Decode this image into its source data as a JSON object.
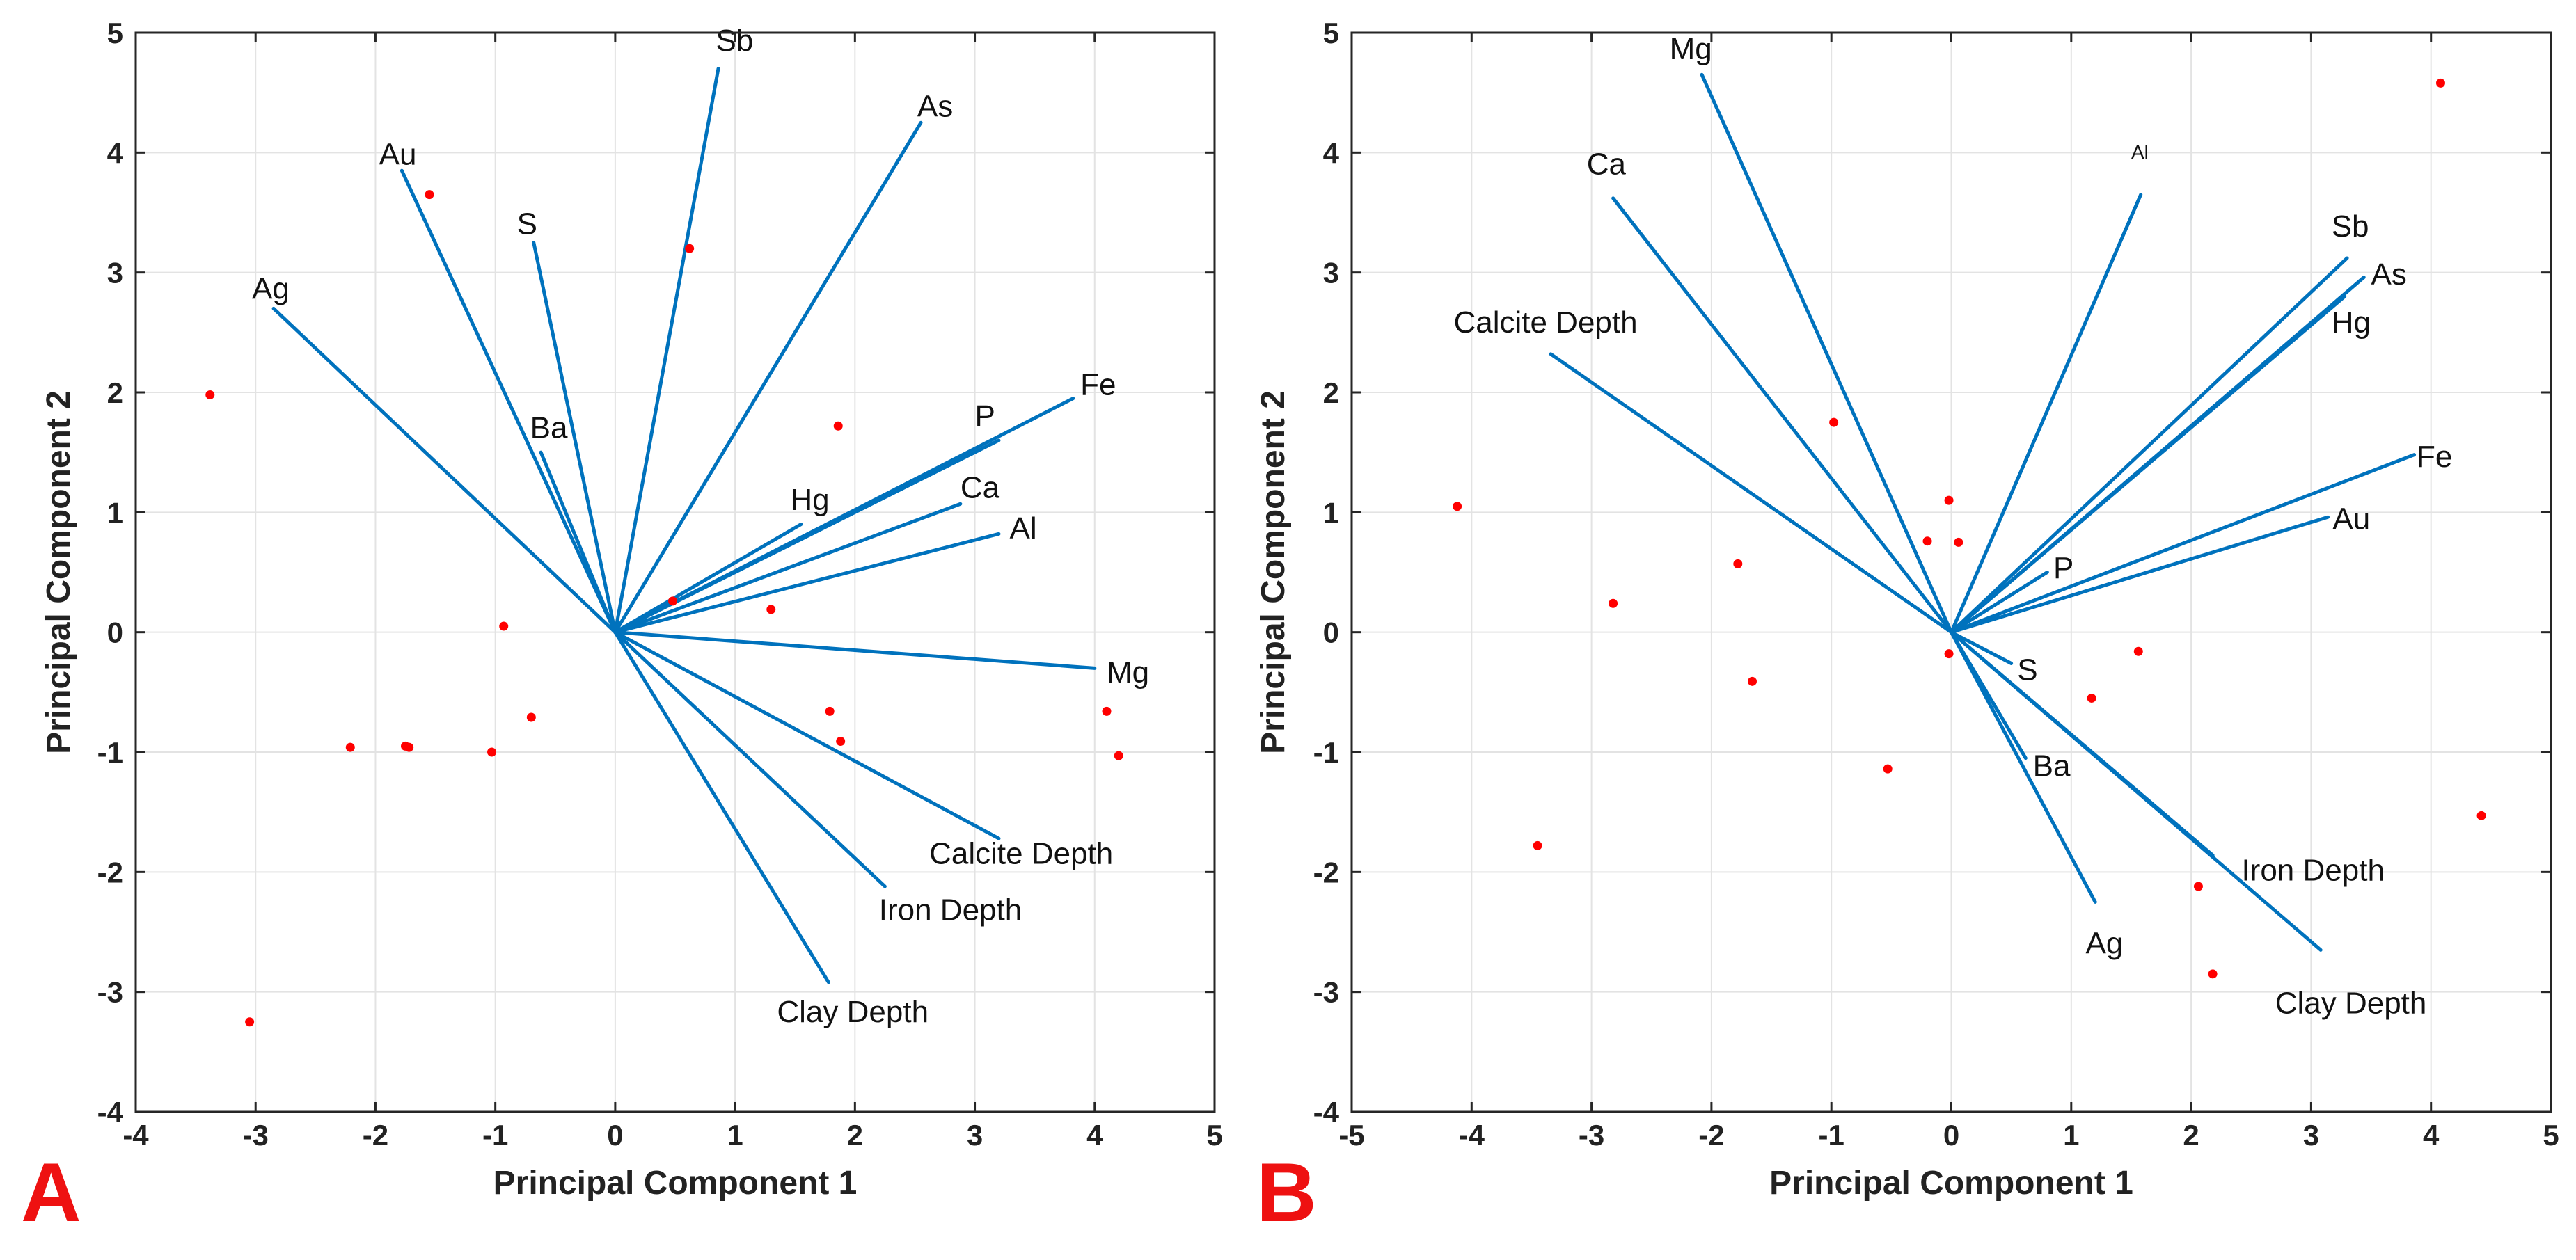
{
  "colors": {
    "vector": "#0072BD",
    "point": "#ff0000",
    "panel_letter": "#ee1111"
  },
  "chart_data": [
    {
      "type": "scatter",
      "panel_label": "A",
      "xlabel": "Principal Component 1",
      "ylabel": "Principal Component 2",
      "xlim": [
        -4,
        5
      ],
      "ylim": [
        -4,
        5
      ],
      "xticks": [
        -4,
        -3,
        -2,
        -1,
        0,
        1,
        2,
        3,
        4,
        5
      ],
      "yticks": [
        -4,
        -3,
        -2,
        -1,
        0,
        1,
        2,
        3,
        4,
        5
      ],
      "grid": true,
      "loadings": [
        {
          "name": "Sb",
          "x": 0.86,
          "y": 4.7,
          "lx": 0.84,
          "ly": 4.85
        },
        {
          "name": "As",
          "x": 2.55,
          "y": 4.25,
          "lx": 2.52,
          "ly": 4.3
        },
        {
          "name": "Au",
          "x": -1.78,
          "y": 3.85,
          "lx": -1.97,
          "ly": 3.9
        },
        {
          "name": "S",
          "x": -0.68,
          "y": 3.25,
          "lx": -0.82,
          "ly": 3.32
        },
        {
          "name": "Ag",
          "x": -2.85,
          "y": 2.7,
          "lx": -3.03,
          "ly": 2.78
        },
        {
          "name": "Ba",
          "x": -0.62,
          "y": 1.5,
          "lx": -0.71,
          "ly": 1.62
        },
        {
          "name": "Fe",
          "x": 3.82,
          "y": 1.95,
          "lx": 3.88,
          "ly": 1.98
        },
        {
          "name": "P",
          "x": 3.2,
          "y": 1.6,
          "lx": 3.0,
          "ly": 1.72
        },
        {
          "name": "Hg",
          "x": 1.55,
          "y": 0.9,
          "lx": 1.46,
          "ly": 1.02
        },
        {
          "name": "Ca",
          "x": 2.88,
          "y": 1.07,
          "lx": 2.88,
          "ly": 1.12
        },
        {
          "name": "Al",
          "x": 3.2,
          "y": 0.82,
          "lx": 3.29,
          "ly": 0.78
        },
        {
          "name": "Mg",
          "x": 4.0,
          "y": -0.3,
          "lx": 4.1,
          "ly": -0.42
        },
        {
          "name": "Calcite Depth",
          "x": 3.2,
          "y": -1.72,
          "lx": 2.62,
          "ly": -1.93
        },
        {
          "name": "Iron Depth",
          "x": 2.25,
          "y": -2.12,
          "lx": 2.2,
          "ly": -2.4
        },
        {
          "name": "Clay Depth",
          "x": 1.78,
          "y": -2.92,
          "lx": 1.35,
          "ly": -3.25
        }
      ],
      "points": [
        {
          "x": -1.55,
          "y": 3.65
        },
        {
          "x": 0.62,
          "y": 3.2
        },
        {
          "x": -3.38,
          "y": 1.98
        },
        {
          "x": 1.86,
          "y": 1.72
        },
        {
          "x": 0.48,
          "y": 0.26
        },
        {
          "x": 1.3,
          "y": 0.19
        },
        {
          "x": -0.93,
          "y": 0.05
        },
        {
          "x": -0.7,
          "y": -0.71
        },
        {
          "x": -2.21,
          "y": -0.96
        },
        {
          "x": -1.75,
          "y": -0.95
        },
        {
          "x": -1.72,
          "y": -0.96
        },
        {
          "x": -1.03,
          "y": -1.0
        },
        {
          "x": 1.79,
          "y": -0.66
        },
        {
          "x": 1.88,
          "y": -0.91
        },
        {
          "x": 4.1,
          "y": -0.66
        },
        {
          "x": 4.2,
          "y": -1.03
        },
        {
          "x": -3.05,
          "y": -3.25
        }
      ]
    },
    {
      "type": "scatter",
      "panel_label": "B",
      "xlabel": "Principal Component 1",
      "ylabel": "Principal Component 2",
      "xlim": [
        -5,
        5
      ],
      "ylim": [
        -4,
        5
      ],
      "xticks": [
        -5,
        -4,
        -3,
        -2,
        -1,
        0,
        1,
        2,
        3,
        4,
        5
      ],
      "yticks": [
        -4,
        -3,
        -2,
        -1,
        0,
        1,
        2,
        3,
        4,
        5
      ],
      "grid": true,
      "loadings": [
        {
          "name": "Mg",
          "x": -2.08,
          "y": 4.65,
          "lx": -2.35,
          "ly": 4.78
        },
        {
          "name": "Ca",
          "x": -2.82,
          "y": 3.62,
          "lx": -3.04,
          "ly": 3.82
        },
        {
          "name": "Al",
          "x": 1.58,
          "y": 3.65,
          "lx": 1.5,
          "ly": 3.95,
          "small": true
        },
        {
          "name": "Sb",
          "x": 3.3,
          "y": 3.12,
          "lx": 3.17,
          "ly": 3.3
        },
        {
          "name": "As",
          "x": 3.44,
          "y": 2.96,
          "lx": 3.5,
          "ly": 2.9
        },
        {
          "name": "Hg",
          "x": 3.28,
          "y": 2.8,
          "lx": 3.17,
          "ly": 2.5
        },
        {
          "name": "Calcite Depth",
          "x": -3.34,
          "y": 2.32,
          "lx": -4.15,
          "ly": 2.5
        },
        {
          "name": "Fe",
          "x": 3.86,
          "y": 1.48,
          "lx": 3.88,
          "ly": 1.38
        },
        {
          "name": "Au",
          "x": 3.14,
          "y": 0.96,
          "lx": 3.18,
          "ly": 0.86
        },
        {
          "name": "P",
          "x": 0.8,
          "y": 0.5,
          "lx": 0.85,
          "ly": 0.45
        },
        {
          "name": "S",
          "x": 0.5,
          "y": -0.26,
          "lx": 0.55,
          "ly": -0.4
        },
        {
          "name": "Ba",
          "x": 0.62,
          "y": -1.05,
          "lx": 0.68,
          "ly": -1.2
        },
        {
          "name": "Ag",
          "x": 1.2,
          "y": -2.25,
          "lx": 1.12,
          "ly": -2.68
        },
        {
          "name": "Iron Depth",
          "x": 2.18,
          "y": -1.86,
          "lx": 2.42,
          "ly": -2.07
        },
        {
          "name": "Clay Depth",
          "x": 3.08,
          "y": -2.65,
          "lx": 2.7,
          "ly": -3.18
        }
      ],
      "points": [
        {
          "x": 4.08,
          "y": 4.58
        },
        {
          "x": -0.98,
          "y": 1.75
        },
        {
          "x": -0.02,
          "y": 1.1
        },
        {
          "x": -4.12,
          "y": 1.05
        },
        {
          "x": -0.2,
          "y": 0.76
        },
        {
          "x": 0.06,
          "y": 0.75
        },
        {
          "x": -1.78,
          "y": 0.57
        },
        {
          "x": -2.82,
          "y": 0.24
        },
        {
          "x": -0.02,
          "y": -0.18
        },
        {
          "x": 1.56,
          "y": -0.16
        },
        {
          "x": -1.66,
          "y": -0.41
        },
        {
          "x": 1.17,
          "y": -0.55
        },
        {
          "x": -0.53,
          "y": -1.14
        },
        {
          "x": 4.42,
          "y": -1.53
        },
        {
          "x": -3.45,
          "y": -1.78
        },
        {
          "x": 2.06,
          "y": -2.12
        },
        {
          "x": 2.18,
          "y": -2.85
        }
      ]
    }
  ]
}
